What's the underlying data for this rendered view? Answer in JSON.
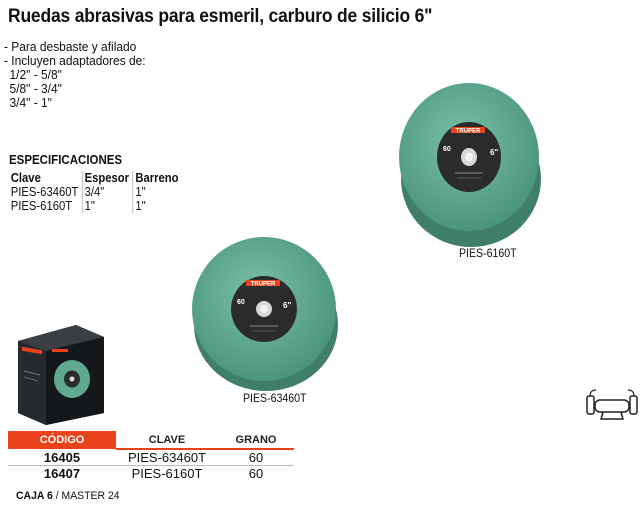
{
  "title": "Ruedas abrasivas para esmeril, carburo de silicio 6\"",
  "features": [
    "- Para desbaste y afilado",
    "- Incluyen adaptadores de:",
    "1/2\" - 5/8\"",
    "5/8\" - 3/4\"",
    "3/4\" - 1\""
  ],
  "specs": {
    "heading": "ESPECIFICACIONES",
    "headers": [
      "Clave",
      "Espesor",
      "Barreno"
    ],
    "rows": [
      [
        "PIES-63460T",
        "3/4\"",
        "1\""
      ],
      [
        "PIES-6160T",
        "1\"",
        "1\""
      ]
    ]
  },
  "images": {
    "large_caption": "PIES-6160T",
    "small_caption": "PIES-63460T",
    "brand": "TRUPER"
  },
  "codes": {
    "headers": [
      "CÓDIGO",
      "CLAVE",
      "GRANO"
    ],
    "rows": [
      [
        "16405",
        "PIES-63460T",
        "60"
      ],
      [
        "16407",
        "PIES-6160T",
        "60"
      ]
    ]
  },
  "packaging": {
    "caja_label": "CAJA 6",
    "master_label": "/ MASTER 24"
  },
  "colors": {
    "accent": "#e8421a",
    "wheel_green": "#5fa98f",
    "label_dark": "#2b2b2b"
  },
  "icons": {
    "bench_grinder": "bench-grinder-icon"
  }
}
